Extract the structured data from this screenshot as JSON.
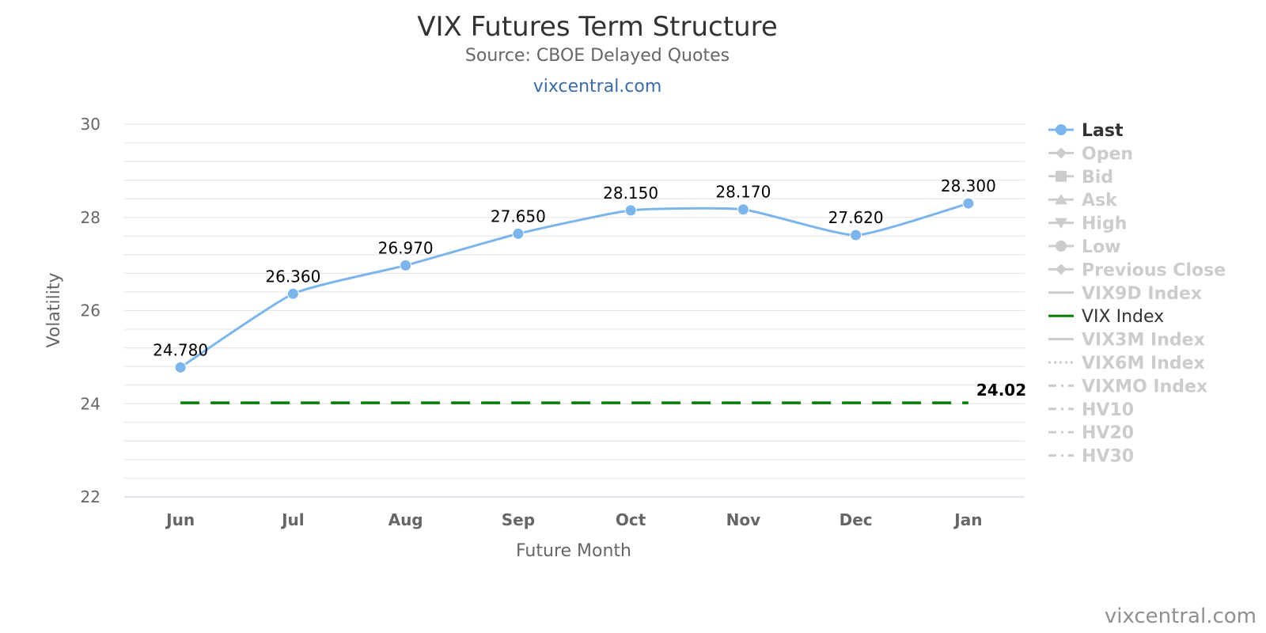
{
  "header": {
    "title": "VIX Futures Term Structure",
    "subtitle": "Source: CBOE Delayed Quotes",
    "link": "vixcentral.com"
  },
  "credits": "vixcentral.com",
  "colors": {
    "last": "#7cb5ec",
    "vix_index": "#008000",
    "hidden": "#cccccc",
    "grid": "#e6e6e6",
    "axis_text": "#666666",
    "data_label": "#000000"
  },
  "chart_data": {
    "type": "line",
    "title": "VIX Futures Term Structure",
    "subtitle": "Source: CBOE Delayed Quotes",
    "xlabel": "Future Month",
    "ylabel": "Volatility",
    "categories": [
      "Jun",
      "Jul",
      "Aug",
      "Sep",
      "Oct",
      "Nov",
      "Dec",
      "Jan"
    ],
    "ylim": [
      22,
      30
    ],
    "yticks": [
      22,
      24,
      26,
      28,
      30
    ],
    "grid": true,
    "legend_position": "right",
    "series": [
      {
        "name": "Last",
        "values": [
          24.78,
          26.36,
          26.97,
          27.65,
          28.15,
          28.17,
          27.62,
          28.3
        ],
        "labels": [
          "24.780",
          "26.360",
          "26.970",
          "27.650",
          "28.150",
          "28.170",
          "27.620",
          "28.300"
        ],
        "style": "smooth-line-circle",
        "color": "#7cb5ec",
        "visible": true
      },
      {
        "name": "VIX Index",
        "values": [
          24.02,
          24.02,
          24.02,
          24.02,
          24.02,
          24.02,
          24.02,
          24.02
        ],
        "end_label": "24.02",
        "style": "dashed",
        "color": "#008000",
        "visible": true
      }
    ],
    "legend": [
      {
        "name": "Last",
        "symbol": "circle",
        "visible": true,
        "color": "#7cb5ec"
      },
      {
        "name": "Open",
        "symbol": "diamond",
        "visible": false
      },
      {
        "name": "Bid",
        "symbol": "square",
        "visible": false
      },
      {
        "name": "Ask",
        "symbol": "triangle",
        "visible": false
      },
      {
        "name": "High",
        "symbol": "triangle-down",
        "visible": false
      },
      {
        "name": "Low",
        "symbol": "circle",
        "visible": false
      },
      {
        "name": "Previous Close",
        "symbol": "diamond",
        "visible": false
      },
      {
        "name": "VIX9D Index",
        "symbol": "line",
        "visible": false
      },
      {
        "name": "VIX Index",
        "symbol": "line",
        "visible": true,
        "color": "#008000"
      },
      {
        "name": "VIX3M Index",
        "symbol": "line",
        "visible": false
      },
      {
        "name": "VIX6M Index",
        "symbol": "dot",
        "visible": false
      },
      {
        "name": "VIXMO Index",
        "symbol": "dashdot",
        "visible": false
      },
      {
        "name": "HV10",
        "symbol": "dashdot",
        "visible": false
      },
      {
        "name": "HV20",
        "symbol": "dashdot",
        "visible": false
      },
      {
        "name": "HV30",
        "symbol": "dashdot",
        "visible": false
      }
    ]
  }
}
